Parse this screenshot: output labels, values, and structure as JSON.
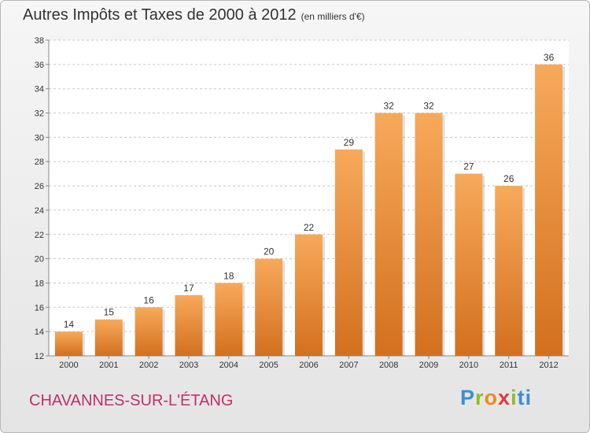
{
  "header": {
    "title": "Autres Impôts et Taxes de 2000 à 2012",
    "subtitle": "(en milliers d'€)"
  },
  "footer": {
    "commune": "CHAVANNES-SUR-L'ÉTANG",
    "logo": "Proxiti"
  },
  "colors": {
    "bar_top": "#f7a95a",
    "bar_bottom": "#d2701e",
    "commune_text": "#c0306a"
  },
  "chart_data": {
    "type": "bar",
    "title": "Autres Impôts et Taxes de 2000 à 2012",
    "subtitle": "(en milliers d'€)",
    "categories": [
      "2000",
      "2001",
      "2002",
      "2003",
      "2004",
      "2005",
      "2006",
      "2007",
      "2008",
      "2009",
      "2010",
      "2011",
      "2012"
    ],
    "values": [
      14,
      15,
      16,
      17,
      18,
      20,
      22,
      29,
      32,
      32,
      27,
      26,
      36
    ],
    "ylim": [
      12,
      38
    ],
    "yticks": [
      12,
      14,
      16,
      18,
      20,
      22,
      24,
      26,
      28,
      30,
      32,
      34,
      36,
      38
    ],
    "grid": "horizontal dashed",
    "data_labels": true
  }
}
